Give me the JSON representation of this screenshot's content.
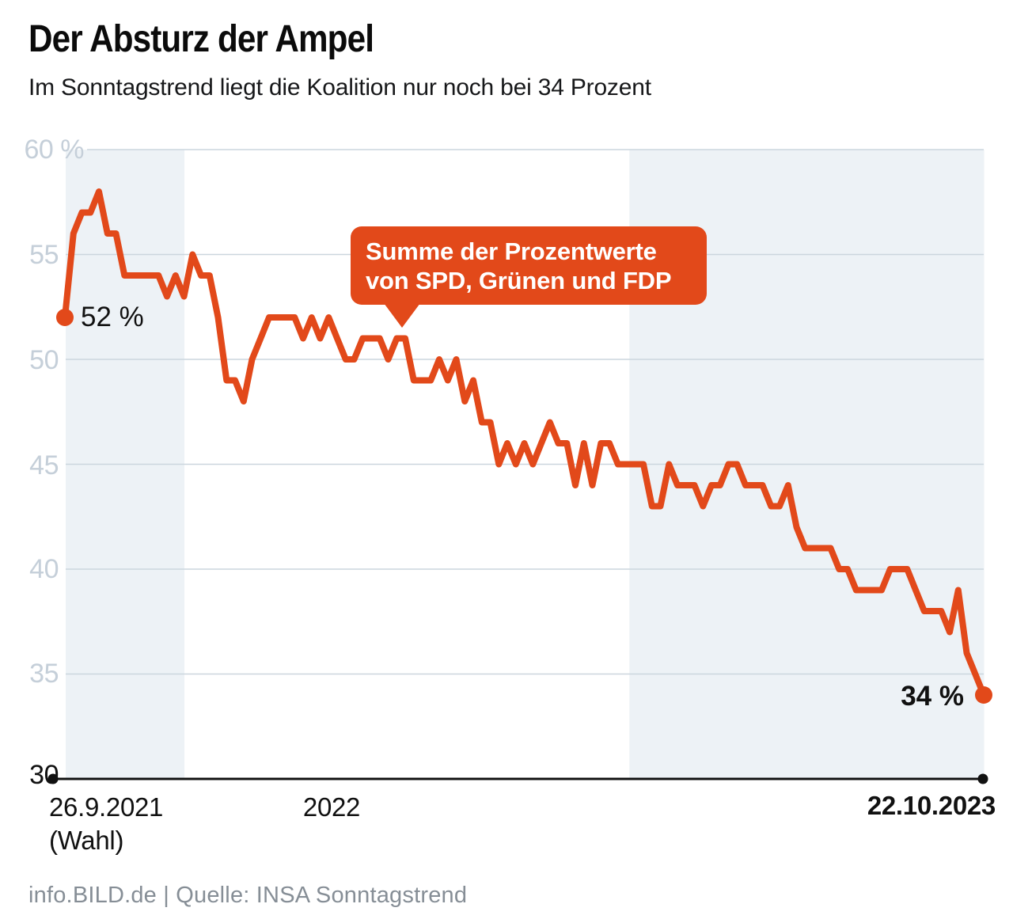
{
  "header": {
    "title": "Der Absturz der Ampel",
    "subtitle": "Im Sonntagstrend liegt die Koalition nur noch bei 34 Prozent"
  },
  "footer": {
    "credit": "info.BILD.de | Quelle: INSA Sonntagstrend"
  },
  "chart_data": {
    "type": "line",
    "title": "Der Absturz der Ampel",
    "subtitle": "Im Sonntagstrend liegt die Koalition nur noch bei 34 Prozent",
    "source": "info.BILD.de | Quelle: INSA Sonntagstrend",
    "x_description": "weekly INSA Sonntagstrend surveys from 26.9.2021 (election) to 22.10.2023",
    "x_start": "26.9.2021 (Wahl)",
    "x_end": "22.10.2023",
    "n_weeks": 108,
    "ylim": [
      30,
      60
    ],
    "grid_values": [
      60,
      55,
      50,
      45,
      40,
      35
    ],
    "baseline_value": 30,
    "y_ticks": [
      "60 %",
      "55",
      "50",
      "45",
      "40",
      "35",
      "30"
    ],
    "x_tick_labels": [
      "26.9.2021",
      "(Wahl)",
      "2022",
      "22.10.2023"
    ],
    "start_label": "52 %",
    "end_label": "34 %",
    "start_value": 52,
    "end_value": 34,
    "annotation": {
      "line1": "Summe der Prozentwerte",
      "line2": "von SPD, Grünen und FDP"
    },
    "bands": [
      {
        "from_week": 0.1,
        "to_week": 14.05
      },
      {
        "from_week": 66.35,
        "to_week": 108.05
      }
    ],
    "series": [
      {
        "name": "Summe der Prozentwerte von SPD, Grünen und FDP",
        "values": [
          52,
          56,
          57,
          57,
          58,
          56,
          56,
          54,
          54,
          54,
          54,
          54,
          53,
          54,
          53,
          55,
          54,
          54,
          52,
          49,
          49,
          48,
          50,
          51,
          52,
          52,
          52,
          52,
          51,
          52,
          51,
          52,
          51,
          50,
          50,
          51,
          51,
          51,
          50,
          51,
          51,
          49,
          49,
          49,
          50,
          49,
          50,
          48,
          49,
          47,
          47,
          45,
          46,
          45,
          46,
          45,
          46,
          47,
          46,
          46,
          44,
          46,
          44,
          46,
          46,
          45,
          45,
          45,
          45,
          43,
          43,
          45,
          44,
          44,
          44,
          43,
          44,
          44,
          45,
          45,
          44,
          44,
          44,
          43,
          43,
          44,
          42,
          41,
          41,
          41,
          41,
          40,
          40,
          39,
          39,
          39,
          39,
          40,
          40,
          40,
          39,
          38,
          38,
          38,
          37,
          39,
          36,
          35,
          34
        ]
      }
    ],
    "colors": {
      "line": "#e2491a",
      "band": "#edf2f6",
      "grid": "#ccd6de",
      "axis": "#111111",
      "tick": "#c5cfd9"
    }
  }
}
